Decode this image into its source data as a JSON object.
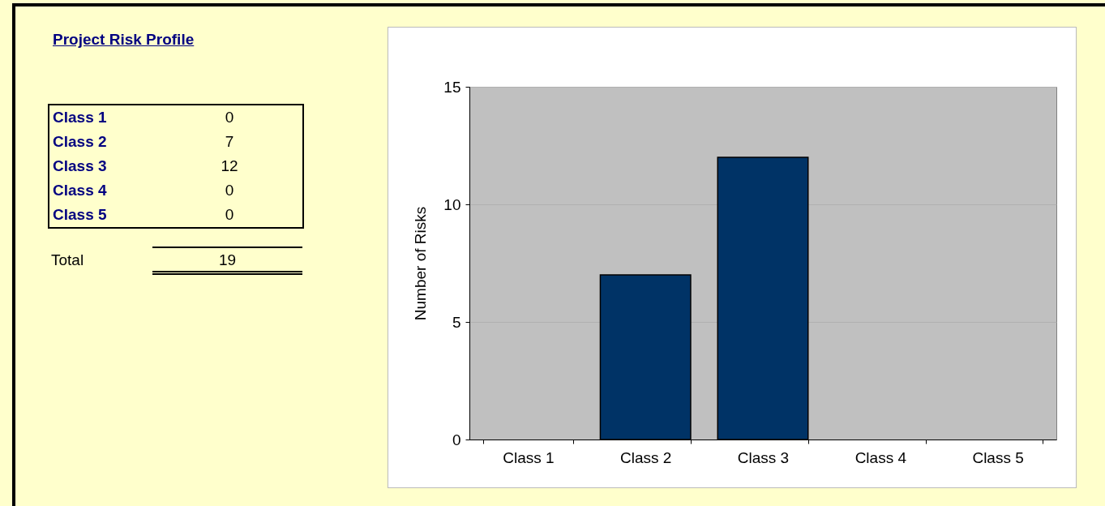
{
  "chart_data": [
    {
      "type": "other",
      "title": "Project Risk Profile",
      "categories": [
        "Class 1",
        "Class 2",
        "Class 3",
        "Class 4",
        "Class 5"
      ],
      "values": [
        0,
        7,
        12,
        0,
        0
      ],
      "data_labels": true,
      "annotations": [
        "Total",
        "19"
      ]
    },
    {
      "type": "bar",
      "ylabel": "Number of Risks",
      "categories": [
        "Class 1",
        "Class 2",
        "Class 3",
        "Class 4",
        "Class 5"
      ],
      "values": [
        0,
        7,
        12,
        0,
        0
      ],
      "color": "#003366",
      "ylim": [
        0,
        15
      ],
      "yticks": [
        0,
        5,
        10,
        15
      ],
      "grid": "y"
    }
  ]
}
